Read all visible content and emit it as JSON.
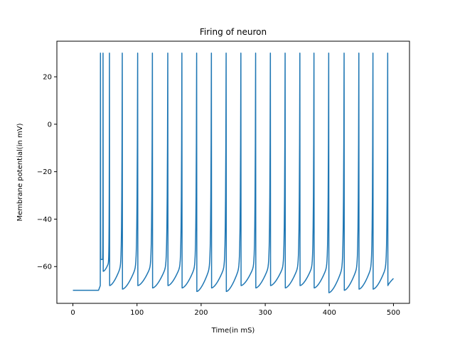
{
  "chart_data": {
    "type": "line",
    "title": "Firing of neuron",
    "xlabel": "Time(in mS)",
    "ylabel": "Membrane potential(in mV)",
    "xlim": [
      -25,
      525
    ],
    "ylim": [
      -75.5,
      35
    ],
    "xticks": [
      0,
      100,
      200,
      300,
      400,
      500
    ],
    "yticks": [
      -60,
      -40,
      -20,
      0,
      20
    ],
    "grid": false,
    "series": [
      {
        "color": "#1f77b4",
        "rest_potential": -70,
        "stimulus_onset": 40,
        "end_time": 500,
        "end_value": -65,
        "peak": 30,
        "spikes": [
          {
            "t": 43,
            "trough": -57
          },
          {
            "t": 47,
            "trough": -62
          },
          {
            "t": 57,
            "trough": -68
          },
          {
            "t": 77,
            "trough": -69.5
          },
          {
            "t": 101,
            "trough": -68
          },
          {
            "t": 124,
            "trough": -69
          },
          {
            "t": 148,
            "trough": -68
          },
          {
            "t": 170,
            "trough": -69
          },
          {
            "t": 193,
            "trough": -70.5
          },
          {
            "t": 216,
            "trough": -69
          },
          {
            "t": 239,
            "trough": -70.5
          },
          {
            "t": 262,
            "trough": -68
          },
          {
            "t": 285,
            "trough": -69
          },
          {
            "t": 308,
            "trough": -68
          },
          {
            "t": 331,
            "trough": -69
          },
          {
            "t": 354,
            "trough": -68
          },
          {
            "t": 376,
            "trough": -69
          },
          {
            "t": 399,
            "trough": -71
          },
          {
            "t": 423,
            "trough": -70
          },
          {
            "t": 446,
            "trough": -69.5
          },
          {
            "t": 468,
            "trough": -69.5
          },
          {
            "t": 491,
            "trough": -68
          }
        ]
      }
    ]
  }
}
